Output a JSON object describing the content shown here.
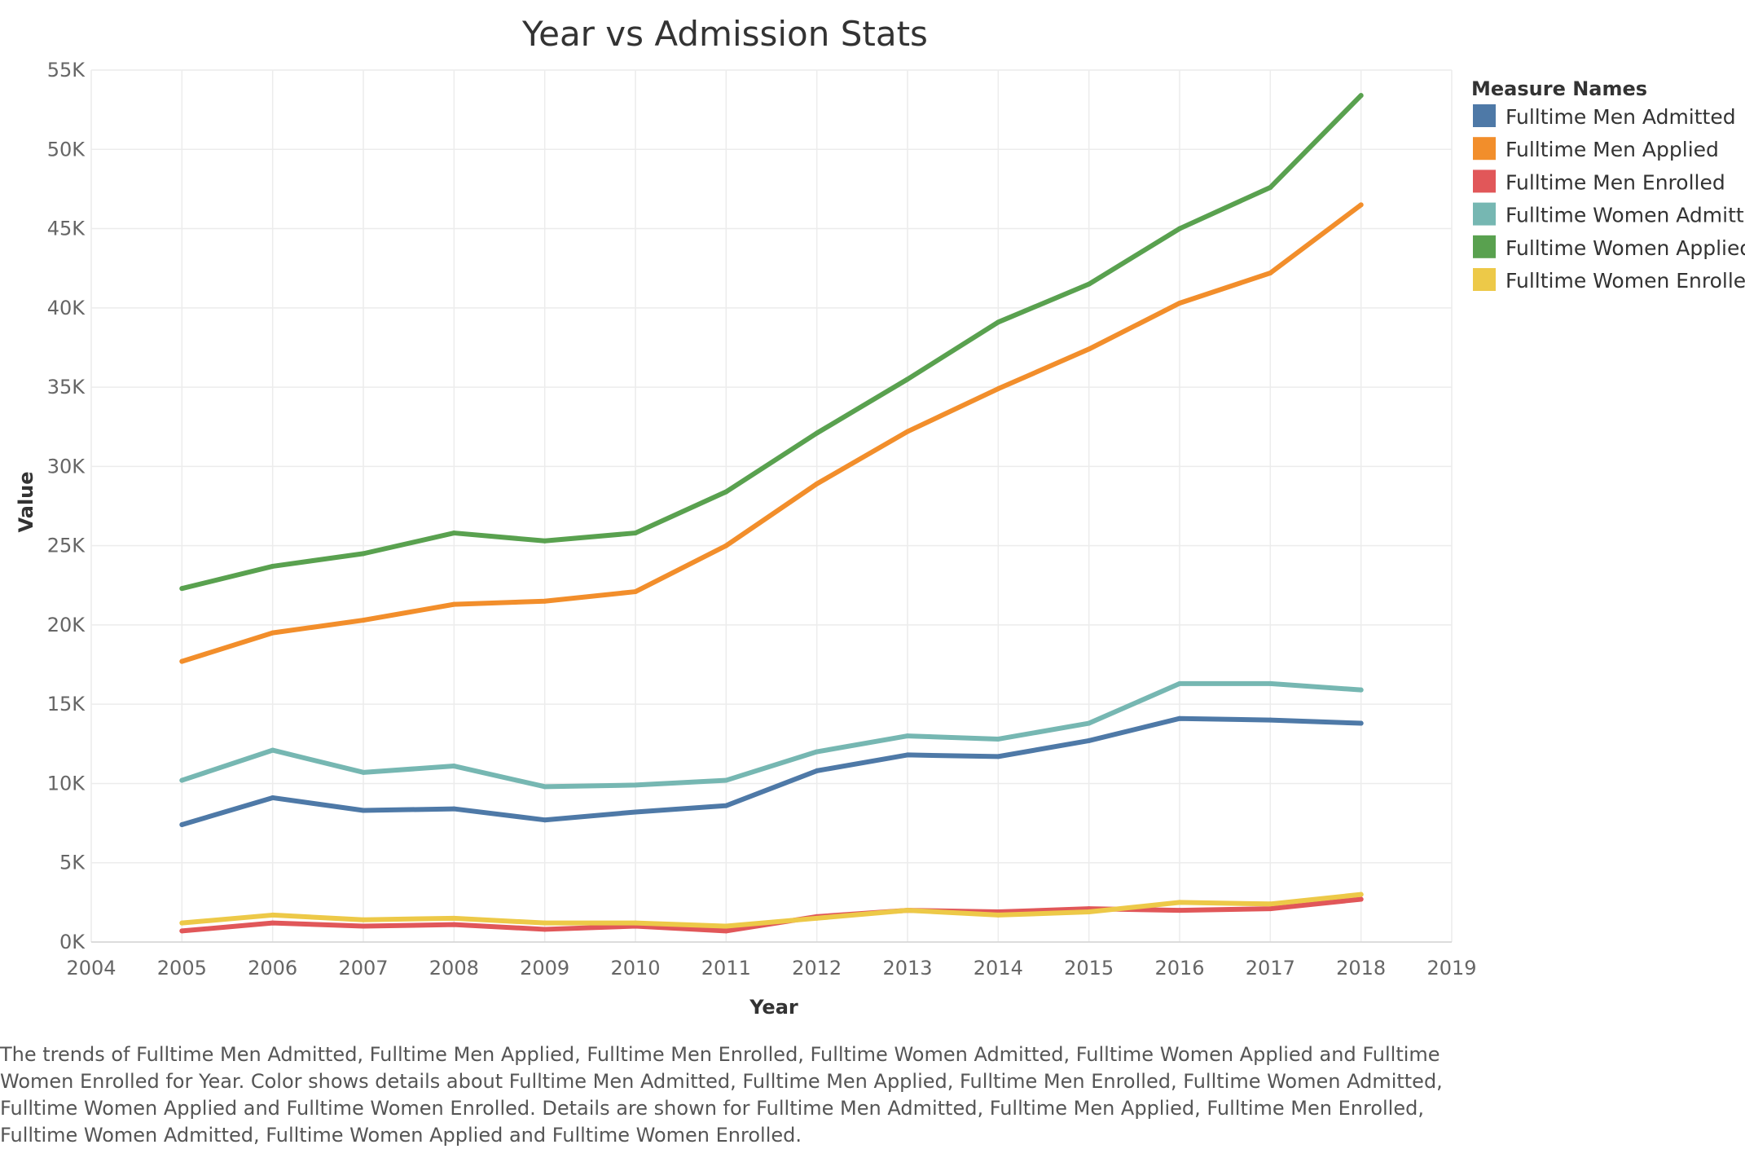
{
  "chart_data": {
    "type": "line",
    "title": "Year vs Admission Stats",
    "xlabel": "Year",
    "ylabel": "Value",
    "x": [
      2005,
      2006,
      2007,
      2008,
      2009,
      2010,
      2011,
      2012,
      2013,
      2014,
      2015,
      2016,
      2017,
      2018
    ],
    "xlim": [
      2004,
      2019
    ],
    "x_ticks": [
      "2004",
      "2005",
      "2006",
      "2007",
      "2008",
      "2009",
      "2010",
      "2011",
      "2012",
      "2013",
      "2014",
      "2015",
      "2016",
      "2017",
      "2018",
      "2019"
    ],
    "ylim": [
      0,
      55000
    ],
    "y_tick_values": [
      0,
      5000,
      10000,
      15000,
      20000,
      25000,
      30000,
      35000,
      40000,
      45000,
      50000,
      55000
    ],
    "y_ticks": [
      "0K",
      "5K",
      "10K",
      "15K",
      "20K",
      "25K",
      "30K",
      "35K",
      "40K",
      "45K",
      "50K",
      "55K"
    ],
    "grid": true,
    "legend": {
      "title": "Measure Names",
      "placement": "right"
    },
    "series": [
      {
        "name": "Fulltime Men Admitted",
        "color": "#4e79a7",
        "values": [
          7400,
          9100,
          8300,
          8400,
          7700,
          8200,
          8600,
          10800,
          11800,
          11700,
          12700,
          14100,
          14000,
          13800
        ]
      },
      {
        "name": "Fulltime Men Applied",
        "color": "#f28e2b",
        "values": [
          17700,
          19500,
          20300,
          21300,
          21500,
          22100,
          25000,
          28900,
          32200,
          34900,
          37400,
          40300,
          42200,
          46500
        ]
      },
      {
        "name": "Fulltime Men Enrolled",
        "color": "#e15759",
        "values": [
          700,
          1200,
          1000,
          1100,
          800,
          1000,
          700,
          1600,
          2000,
          1900,
          2100,
          2000,
          2100,
          2700
        ]
      },
      {
        "name": "Fulltime Women Admitted",
        "color": "#76b7b2",
        "values": [
          10200,
          12100,
          10700,
          11100,
          9800,
          9900,
          10200,
          12000,
          13000,
          12800,
          13800,
          16300,
          16300,
          15900
        ]
      },
      {
        "name": "Fulltime Women Applied",
        "color": "#59a14f",
        "values": [
          22300,
          23700,
          24500,
          25800,
          25300,
          25800,
          28400,
          32100,
          35500,
          39100,
          41500,
          45000,
          47600,
          53400
        ]
      },
      {
        "name": "Fulltime Women Enrolled",
        "color": "#edc948",
        "values": [
          1200,
          1700,
          1400,
          1500,
          1200,
          1200,
          1000,
          1500,
          2000,
          1700,
          1900,
          2500,
          2400,
          3000
        ]
      }
    ]
  },
  "caption": "The trends of Fulltime Men Admitted, Fulltime Men Applied, Fulltime Men Enrolled, Fulltime Women Admitted, Fulltime Women Applied and Fulltime Women Enrolled for Year.  Color shows details about Fulltime Men Admitted, Fulltime Men Applied, Fulltime Men Enrolled, Fulltime Women Admitted, Fulltime Women Applied and Fulltime Women Enrolled.  Details are shown for Fulltime Men Admitted, Fulltime Men Applied, Fulltime Men Enrolled, Fulltime Women Admitted, Fulltime Women Applied and Fulltime Women Enrolled."
}
